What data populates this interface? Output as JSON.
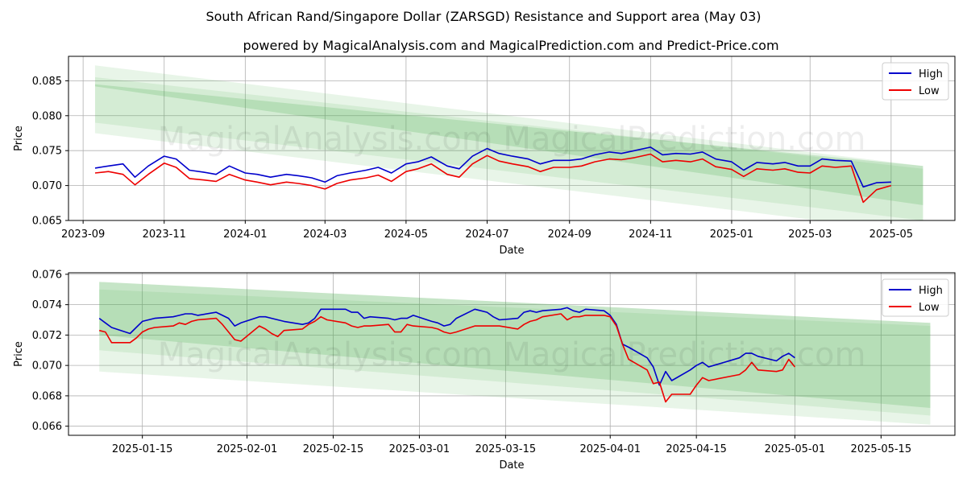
{
  "title": "South African Rand/Singapore Dollar (ZARSGD) Resistance and Support area (May 03)",
  "subtitle": "powered by MagicalAnalysis.com and MagicalPrediction.com and Predict-Price.com",
  "watermark": "MagicalAnalysis.com    MagicalPrediction.com",
  "colors": {
    "high": "#0000cc",
    "low": "#ee0000",
    "band": "#4caf50"
  },
  "chart_data": [
    {
      "type": "line",
      "xlabel": "Date",
      "ylabel": "Price",
      "xlim": [
        "2023-08-21",
        "2025-06-18"
      ],
      "ylim": [
        0.065,
        0.0885
      ],
      "xticks": [
        "2023-09-01",
        "2023-11-01",
        "2024-01-01",
        "2024-03-01",
        "2024-05-01",
        "2024-07-01",
        "2024-09-01",
        "2024-11-01",
        "2025-01-01",
        "2025-03-01",
        "2025-05-01"
      ],
      "xtick_labels": [
        "2023-09",
        "2023-11",
        "2024-01",
        "2024-03",
        "2024-05",
        "2024-07",
        "2024-09",
        "2024-11",
        "2025-01",
        "2025-03",
        "2025-05"
      ],
      "yticks": [
        0.065,
        0.07,
        0.075,
        0.08,
        0.085
      ],
      "ytick_labels": [
        "0.065",
        "0.070",
        "0.075",
        "0.080",
        "0.085"
      ],
      "grid": true,
      "legend": "top-right",
      "bands": [
        {
          "x": [
            "2023-09-10",
            "2025-05-25"
          ],
          "top": [
            0.0872,
            0.0728
          ],
          "bottom": [
            0.0775,
            0.0632
          ],
          "opacity": 0.13
        },
        {
          "x": [
            "2023-09-10",
            "2025-05-25"
          ],
          "top": [
            0.0855,
            0.0724
          ],
          "bottom": [
            0.079,
            0.065
          ],
          "opacity": 0.13
        },
        {
          "x": [
            "2023-09-10",
            "2025-05-25"
          ],
          "top": [
            0.0845,
            0.0728
          ],
          "bottom": [
            0.0842,
            0.0672
          ],
          "opacity": 0.22
        }
      ],
      "series": [
        {
          "name": "High",
          "color": "#0000cc",
          "x": [
            "2023-09-10",
            "2023-09-20",
            "2023-10-01",
            "2023-10-10",
            "2023-10-20",
            "2023-11-01",
            "2023-11-10",
            "2023-11-20",
            "2023-12-01",
            "2023-12-10",
            "2023-12-20",
            "2024-01-01",
            "2024-01-10",
            "2024-01-20",
            "2024-02-01",
            "2024-02-10",
            "2024-02-20",
            "2024-03-01",
            "2024-03-10",
            "2024-03-20",
            "2024-04-01",
            "2024-04-10",
            "2024-04-20",
            "2024-05-01",
            "2024-05-10",
            "2024-05-20",
            "2024-06-01",
            "2024-06-10",
            "2024-06-20",
            "2024-07-01",
            "2024-07-10",
            "2024-07-20",
            "2024-08-01",
            "2024-08-10",
            "2024-08-20",
            "2024-09-01",
            "2024-09-10",
            "2024-09-20",
            "2024-10-01",
            "2024-10-10",
            "2024-10-20",
            "2024-11-01",
            "2024-11-10",
            "2024-11-20",
            "2024-12-01",
            "2024-12-10",
            "2024-12-20",
            "2025-01-01",
            "2025-01-10",
            "2025-01-20",
            "2025-02-01",
            "2025-02-10",
            "2025-02-20",
            "2025-03-01",
            "2025-03-10",
            "2025-03-20",
            "2025-04-01",
            "2025-04-10",
            "2025-04-20",
            "2025-05-01"
          ],
          "values": [
            0.0725,
            0.0728,
            0.0731,
            0.0712,
            0.0728,
            0.0742,
            0.0738,
            0.0722,
            0.0719,
            0.0716,
            0.0728,
            0.0718,
            0.0716,
            0.0712,
            0.0716,
            0.0714,
            0.0711,
            0.0705,
            0.0714,
            0.0718,
            0.0722,
            0.0726,
            0.0718,
            0.0731,
            0.0734,
            0.0741,
            0.0728,
            0.0724,
            0.0742,
            0.0753,
            0.0746,
            0.0742,
            0.0738,
            0.0731,
            0.0736,
            0.0736,
            0.0738,
            0.0744,
            0.0748,
            0.0746,
            0.075,
            0.0755,
            0.0744,
            0.0746,
            0.0745,
            0.0748,
            0.0738,
            0.0734,
            0.0722,
            0.0733,
            0.0731,
            0.0733,
            0.0728,
            0.0728,
            0.0738,
            0.0736,
            0.0735,
            0.0698,
            0.0704,
            0.0705
          ]
        },
        {
          "name": "Low",
          "color": "#ee0000",
          "x": [
            "2023-09-10",
            "2023-09-20",
            "2023-10-01",
            "2023-10-10",
            "2023-10-20",
            "2023-11-01",
            "2023-11-10",
            "2023-11-20",
            "2023-12-01",
            "2023-12-10",
            "2023-12-20",
            "2024-01-01",
            "2024-01-10",
            "2024-01-20",
            "2024-02-01",
            "2024-02-10",
            "2024-02-20",
            "2024-03-01",
            "2024-03-10",
            "2024-03-20",
            "2024-04-01",
            "2024-04-10",
            "2024-04-20",
            "2024-05-01",
            "2024-05-10",
            "2024-05-20",
            "2024-06-01",
            "2024-06-10",
            "2024-06-20",
            "2024-07-01",
            "2024-07-10",
            "2024-07-20",
            "2024-08-01",
            "2024-08-10",
            "2024-08-20",
            "2024-09-01",
            "2024-09-10",
            "2024-09-20",
            "2024-10-01",
            "2024-10-10",
            "2024-10-20",
            "2024-11-01",
            "2024-11-10",
            "2024-11-20",
            "2024-12-01",
            "2024-12-10",
            "2024-12-20",
            "2025-01-01",
            "2025-01-10",
            "2025-01-20",
            "2025-02-01",
            "2025-02-10",
            "2025-02-20",
            "2025-03-01",
            "2025-03-10",
            "2025-03-20",
            "2025-04-01",
            "2025-04-10",
            "2025-04-20",
            "2025-05-01"
          ],
          "values": [
            0.0718,
            0.072,
            0.0716,
            0.0701,
            0.0716,
            0.0732,
            0.0726,
            0.071,
            0.0708,
            0.0706,
            0.0716,
            0.0708,
            0.0705,
            0.0701,
            0.0705,
            0.0703,
            0.07,
            0.0695,
            0.0703,
            0.0708,
            0.0711,
            0.0715,
            0.0706,
            0.072,
            0.0724,
            0.0731,
            0.0716,
            0.0712,
            0.0731,
            0.0743,
            0.0735,
            0.0731,
            0.0727,
            0.072,
            0.0726,
            0.0726,
            0.0728,
            0.0734,
            0.0738,
            0.0737,
            0.074,
            0.0745,
            0.0734,
            0.0736,
            0.0734,
            0.0738,
            0.0727,
            0.0723,
            0.0713,
            0.0724,
            0.0722,
            0.0724,
            0.0719,
            0.0718,
            0.0728,
            0.0726,
            0.0728,
            0.0676,
            0.0694,
            0.07
          ]
        }
      ]
    },
    {
      "type": "line",
      "xlabel": "Date",
      "ylabel": "Price",
      "xlim": [
        "2025-01-03",
        "2025-05-27"
      ],
      "ylim": [
        0.0654,
        0.0761
      ],
      "xticks": [
        "2025-01-15",
        "2025-02-01",
        "2025-02-15",
        "2025-03-01",
        "2025-03-15",
        "2025-04-01",
        "2025-04-15",
        "2025-05-01",
        "2025-05-15"
      ],
      "xtick_labels": [
        "2025-01-15",
        "2025-02-01",
        "2025-02-15",
        "2025-03-01",
        "2025-03-15",
        "2025-04-01",
        "2025-04-15",
        "2025-05-01",
        "2025-05-15"
      ],
      "yticks": [
        0.066,
        0.068,
        0.07,
        0.072,
        0.074,
        0.076
      ],
      "ytick_labels": [
        "0.066",
        "0.068",
        "0.070",
        "0.072",
        "0.074",
        "0.076"
      ],
      "grid": true,
      "legend": "top-right",
      "bands": [
        {
          "x": [
            "2025-01-08",
            "2025-05-23"
          ],
          "top": [
            0.0755,
            0.0728
          ],
          "bottom": [
            0.0696,
            0.0661
          ],
          "opacity": 0.13
        },
        {
          "x": [
            "2025-01-08",
            "2025-05-23"
          ],
          "top": [
            0.075,
            0.0726
          ],
          "bottom": [
            0.071,
            0.0667
          ],
          "opacity": 0.13
        },
        {
          "x": [
            "2025-01-08",
            "2025-05-23"
          ],
          "top": [
            0.0755,
            0.0728
          ],
          "bottom": [
            0.072,
            0.0672
          ],
          "opacity": 0.22
        }
      ],
      "series": [
        {
          "name": "High",
          "color": "#0000cc",
          "x": [
            "2025-01-08",
            "2025-01-09",
            "2025-01-10",
            "2025-01-13",
            "2025-01-14",
            "2025-01-15",
            "2025-01-16",
            "2025-01-17",
            "2025-01-20",
            "2025-01-21",
            "2025-01-22",
            "2025-01-23",
            "2025-01-24",
            "2025-01-27",
            "2025-01-28",
            "2025-01-29",
            "2025-01-30",
            "2025-01-31",
            "2025-02-03",
            "2025-02-04",
            "2025-02-05",
            "2025-02-06",
            "2025-02-07",
            "2025-02-10",
            "2025-02-11",
            "2025-02-12",
            "2025-02-13",
            "2025-02-14",
            "2025-02-17",
            "2025-02-18",
            "2025-02-19",
            "2025-02-20",
            "2025-02-21",
            "2025-02-24",
            "2025-02-25",
            "2025-02-26",
            "2025-02-27",
            "2025-02-28",
            "2025-03-03",
            "2025-03-04",
            "2025-03-05",
            "2025-03-06",
            "2025-03-07",
            "2025-03-10",
            "2025-03-11",
            "2025-03-12",
            "2025-03-13",
            "2025-03-14",
            "2025-03-17",
            "2025-03-18",
            "2025-03-19",
            "2025-03-20",
            "2025-03-21",
            "2025-03-24",
            "2025-03-25",
            "2025-03-26",
            "2025-03-27",
            "2025-03-28",
            "2025-03-31",
            "2025-04-01",
            "2025-04-02",
            "2025-04-03",
            "2025-04-04",
            "2025-04-07",
            "2025-04-08",
            "2025-04-09",
            "2025-04-10",
            "2025-04-11",
            "2025-04-14",
            "2025-04-15",
            "2025-04-16",
            "2025-04-17",
            "2025-04-22",
            "2025-04-23",
            "2025-04-24",
            "2025-04-25",
            "2025-04-28",
            "2025-04-29",
            "2025-04-30",
            "2025-05-01"
          ],
          "values": [
            0.0731,
            0.0728,
            0.0725,
            0.0721,
            0.0725,
            0.0729,
            0.073,
            0.0731,
            0.0732,
            0.0733,
            0.0734,
            0.0734,
            0.0733,
            0.0735,
            0.0733,
            0.0731,
            0.0726,
            0.0728,
            0.0732,
            0.0732,
            0.0731,
            0.073,
            0.0729,
            0.0727,
            0.0728,
            0.0731,
            0.0737,
            0.0737,
            0.0737,
            0.0735,
            0.0735,
            0.0731,
            0.0732,
            0.0731,
            0.073,
            0.0731,
            0.0731,
            0.0733,
            0.0729,
            0.0728,
            0.0726,
            0.0727,
            0.0731,
            0.0737,
            0.0736,
            0.0735,
            0.0732,
            0.073,
            0.0731,
            0.0735,
            0.0736,
            0.0735,
            0.0736,
            0.0737,
            0.0738,
            0.0736,
            0.0735,
            0.0737,
            0.0736,
            0.0733,
            0.0727,
            0.0714,
            0.0712,
            0.0705,
            0.0699,
            0.0687,
            0.0696,
            0.069,
            0.0697,
            0.07,
            0.0702,
            0.0699,
            0.0705,
            0.0708,
            0.0708,
            0.0706,
            0.0703,
            0.0706,
            0.0708,
            0.0705
          ]
        },
        {
          "name": "Low",
          "color": "#ee0000",
          "x": [
            "2025-01-08",
            "2025-01-09",
            "2025-01-10",
            "2025-01-13",
            "2025-01-14",
            "2025-01-15",
            "2025-01-16",
            "2025-01-17",
            "2025-01-20",
            "2025-01-21",
            "2025-01-22",
            "2025-01-23",
            "2025-01-24",
            "2025-01-27",
            "2025-01-28",
            "2025-01-29",
            "2025-01-30",
            "2025-01-31",
            "2025-02-03",
            "2025-02-04",
            "2025-02-05",
            "2025-02-06",
            "2025-02-07",
            "2025-02-10",
            "2025-02-11",
            "2025-02-12",
            "2025-02-13",
            "2025-02-14",
            "2025-02-17",
            "2025-02-18",
            "2025-02-19",
            "2025-02-20",
            "2025-02-21",
            "2025-02-24",
            "2025-02-25",
            "2025-02-26",
            "2025-02-27",
            "2025-02-28",
            "2025-03-03",
            "2025-03-04",
            "2025-03-05",
            "2025-03-06",
            "2025-03-07",
            "2025-03-10",
            "2025-03-11",
            "2025-03-12",
            "2025-03-13",
            "2025-03-14",
            "2025-03-17",
            "2025-03-18",
            "2025-03-19",
            "2025-03-20",
            "2025-03-21",
            "2025-03-24",
            "2025-03-25",
            "2025-03-26",
            "2025-03-27",
            "2025-03-28",
            "2025-03-31",
            "2025-04-01",
            "2025-04-02",
            "2025-04-03",
            "2025-04-04",
            "2025-04-07",
            "2025-04-08",
            "2025-04-09",
            "2025-04-10",
            "2025-04-11",
            "2025-04-14",
            "2025-04-15",
            "2025-04-16",
            "2025-04-17",
            "2025-04-22",
            "2025-04-23",
            "2025-04-24",
            "2025-04-25",
            "2025-04-28",
            "2025-04-29",
            "2025-04-30",
            "2025-05-01"
          ],
          "values": [
            0.0723,
            0.0722,
            0.0715,
            0.0715,
            0.0718,
            0.0722,
            0.0724,
            0.0725,
            0.0726,
            0.0728,
            0.0727,
            0.0729,
            0.073,
            0.0731,
            0.0727,
            0.0722,
            0.0717,
            0.0716,
            0.0726,
            0.0724,
            0.0721,
            0.0719,
            0.0723,
            0.0724,
            0.0727,
            0.0729,
            0.0732,
            0.073,
            0.0728,
            0.0726,
            0.0725,
            0.0726,
            0.0726,
            0.0727,
            0.0722,
            0.0722,
            0.0727,
            0.0726,
            0.0725,
            0.0724,
            0.0722,
            0.0721,
            0.0722,
            0.0726,
            0.0726,
            0.0726,
            0.0726,
            0.0726,
            0.0724,
            0.0727,
            0.0729,
            0.073,
            0.0732,
            0.0734,
            0.073,
            0.0732,
            0.0732,
            0.0733,
            0.0733,
            0.0732,
            0.0726,
            0.0714,
            0.0704,
            0.0697,
            0.0688,
            0.0689,
            0.0676,
            0.0681,
            0.0681,
            0.0687,
            0.0692,
            0.069,
            0.0694,
            0.0697,
            0.0702,
            0.0697,
            0.0696,
            0.0697,
            0.0704,
            0.0699
          ]
        }
      ]
    }
  ]
}
